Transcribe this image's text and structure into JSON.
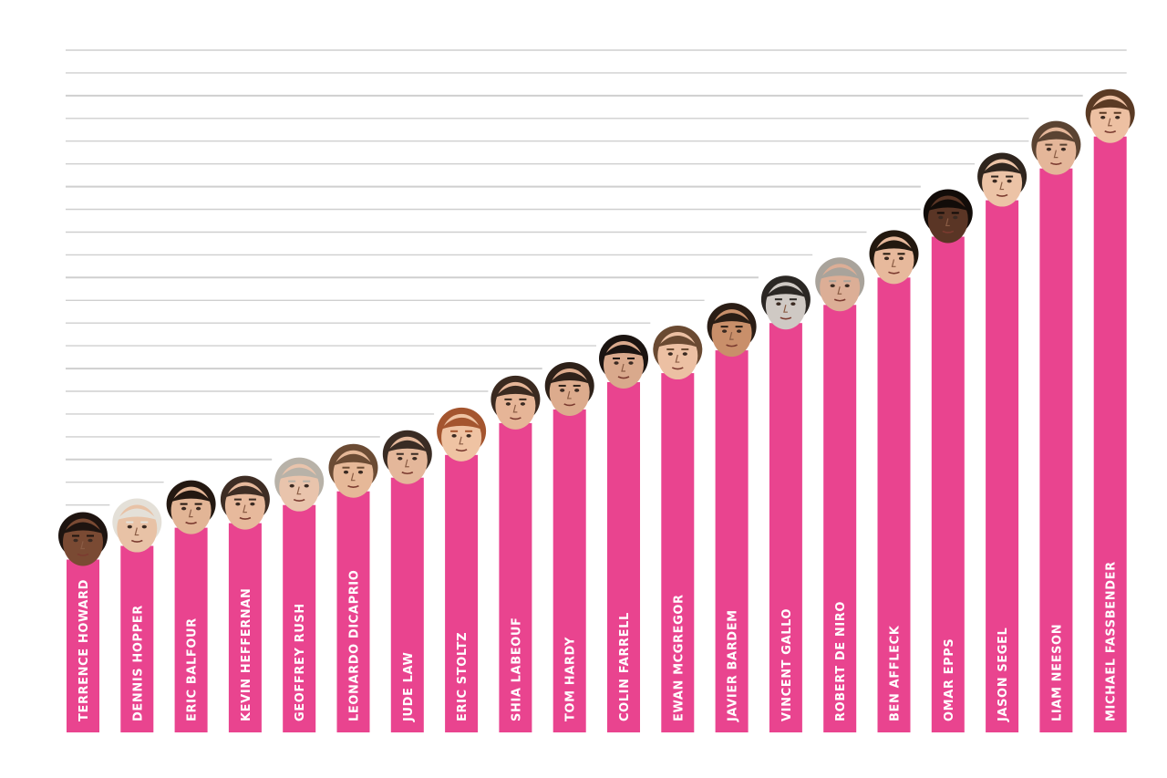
{
  "chart_data": {
    "type": "bar",
    "title": "",
    "xlabel": "",
    "ylabel": "",
    "ylim": [
      0,
      750
    ],
    "grid": true,
    "bar_color": "#e9448f",
    "grid_color": "#cfcfcf",
    "categories": [
      "TERRENCE HOWARD",
      "DENNIS HOPPER",
      "ERIC BALFOUR",
      "KEVIN HEFFERNAN",
      "GEOFFREY RUSH",
      "LEONARDO DICAPRIO",
      "JUDE LAW",
      "ERIC STOLTZ",
      "SHIA LABEOUF",
      "TOM HARDY",
      "COLIN FARRELL",
      "EWAN MCGREGOR",
      "JAVIER BARDEM",
      "VINCENT GALLO",
      "ROBERT DE NIRO",
      "BEN AFFLECK",
      "OMAR EPPS",
      "JASON SEGEL",
      "LIAM NEESON",
      "MICHAEL FASSBENDER"
    ],
    "values": [
      190,
      205,
      225,
      230,
      250,
      265,
      280,
      305,
      340,
      355,
      385,
      395,
      420,
      450,
      470,
      500,
      545,
      585,
      620,
      655
    ],
    "faces": [
      {
        "skin": "#7a4a33",
        "hair": "#1e1410"
      },
      {
        "skin": "#e8c2a6",
        "hair": "#e4e0d8"
      },
      {
        "skin": "#e2b596",
        "hair": "#231811"
      },
      {
        "skin": "#e7b99c",
        "hair": "#3e2d24"
      },
      {
        "skin": "#e9c4ac",
        "hair": "#b8b2a8"
      },
      {
        "skin": "#e6b898",
        "hair": "#6b4b34"
      },
      {
        "skin": "#e4b79a",
        "hair": "#3a2c24"
      },
      {
        "skin": "#efc3a3",
        "hair": "#a4552f"
      },
      {
        "skin": "#e6b597",
        "hair": "#3b2a20"
      },
      {
        "skin": "#dcab8d",
        "hair": "#2e2119"
      },
      {
        "skin": "#d9a98c",
        "hair": "#1b1411"
      },
      {
        "skin": "#ecc0a3",
        "hair": "#6a4a32"
      },
      {
        "skin": "#c98f6a",
        "hair": "#2a1d15"
      },
      {
        "skin": "#cfc9c4",
        "hair": "#2b2724"
      },
      {
        "skin": "#dcae96",
        "hair": "#a9a39b"
      },
      {
        "skin": "#e7b99c",
        "hair": "#22180f"
      },
      {
        "skin": "#5a3525",
        "hair": "#120c09"
      },
      {
        "skin": "#ecc3a6",
        "hair": "#2f251e"
      },
      {
        "skin": "#e4b699",
        "hair": "#5a4332"
      },
      {
        "skin": "#edc0a2",
        "hair": "#5a3a24"
      }
    ]
  }
}
